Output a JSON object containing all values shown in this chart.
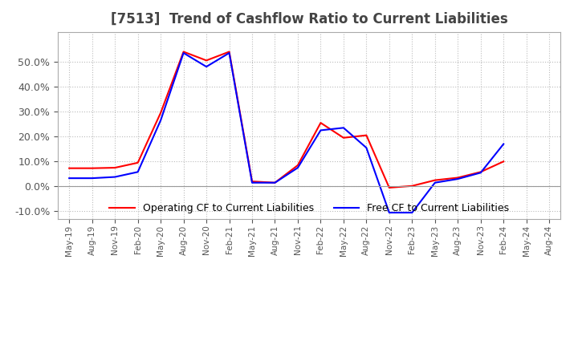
{
  "title": "[7513]  Trend of Cashflow Ratio to Current Liabilities",
  "x_labels": [
    "May-19",
    "Aug-19",
    "Nov-19",
    "Feb-20",
    "May-20",
    "Aug-20",
    "Nov-20",
    "Feb-21",
    "May-21",
    "Aug-21",
    "Nov-21",
    "Feb-22",
    "May-22",
    "Aug-22",
    "Nov-22",
    "Feb-23",
    "May-23",
    "Aug-23",
    "Nov-23",
    "Feb-24",
    "May-24",
    "Aug-24"
  ],
  "operating_cf": [
    0.073,
    0.073,
    0.075,
    0.095,
    0.295,
    0.54,
    0.505,
    0.54,
    0.02,
    0.015,
    0.085,
    0.255,
    0.195,
    0.205,
    -0.005,
    0.002,
    0.025,
    0.035,
    0.058,
    0.1,
    null,
    null
  ],
  "free_cf": [
    0.033,
    0.033,
    0.038,
    0.058,
    0.265,
    0.535,
    0.48,
    0.535,
    0.015,
    0.015,
    0.075,
    0.225,
    0.235,
    0.155,
    -0.105,
    -0.105,
    0.015,
    0.03,
    0.055,
    0.17,
    null,
    null
  ],
  "operating_color": "#ff0000",
  "free_color": "#0000ff",
  "ylim": [
    -0.13,
    0.62
  ],
  "yticks": [
    -0.1,
    0.0,
    0.1,
    0.2,
    0.3,
    0.4,
    0.5
  ],
  "grid_color": "#bbbbbb",
  "background_color": "#ffffff",
  "legend_op": "Operating CF to Current Liabilities",
  "legend_free": "Free CF to Current Liabilities"
}
